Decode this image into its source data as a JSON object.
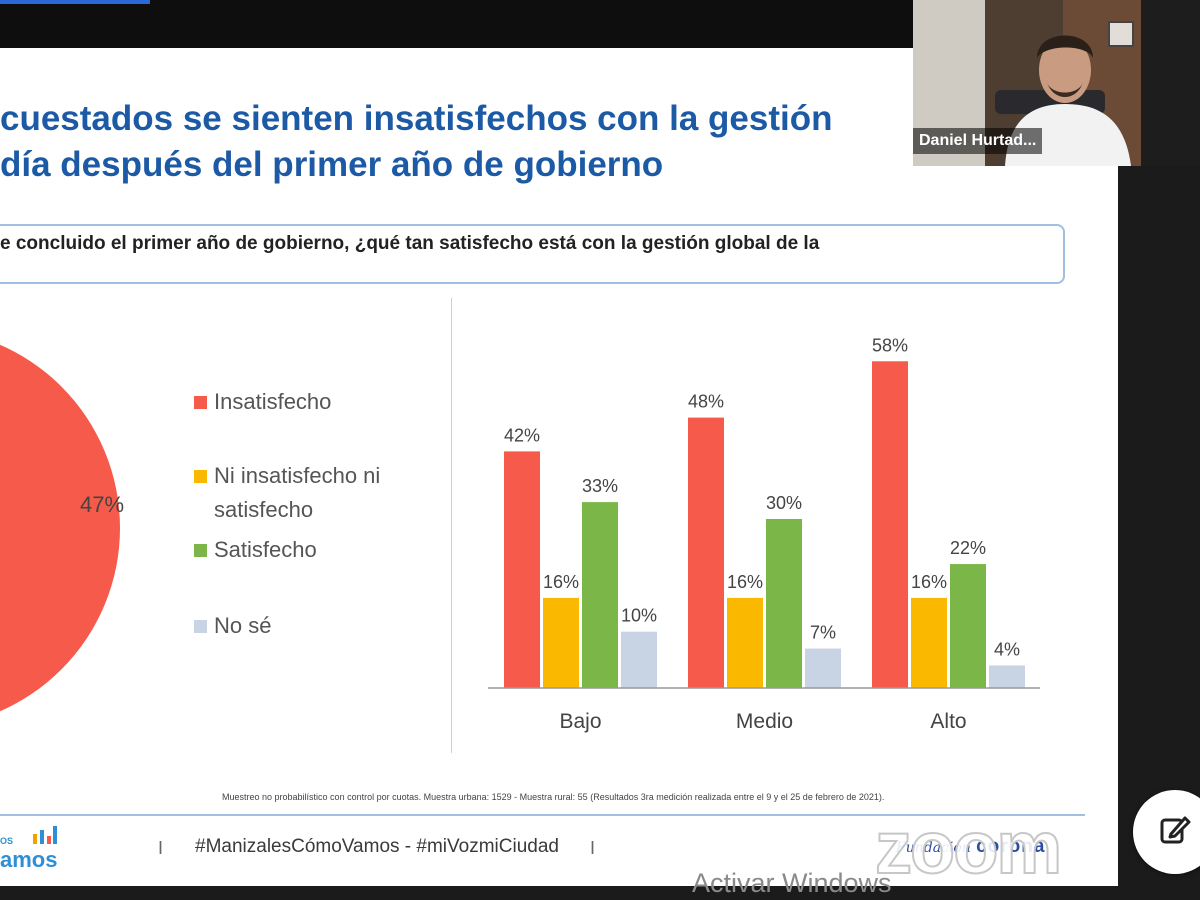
{
  "slide": {
    "title_line1": "cuestados se sienten insatisfechos con la gestión",
    "title_line2": "día después del primer año de gobierno",
    "question": "e concluido el primer año de gobierno, ¿qué tan satisfecho está con la gestión global de la",
    "pie_label": "47%",
    "legend": [
      {
        "label": "Insatisfecho",
        "color": "#f55a4a"
      },
      {
        "label_line1": "Ni insatisfecho ni",
        "label_line2": "satisfecho",
        "color": "#fbb800"
      },
      {
        "label": "Satisfecho",
        "color": "#7ab648"
      },
      {
        "label": "No sé",
        "color": "#c8d3e3"
      }
    ],
    "footnote": "Muestreo no probabilístico con control por cuotas. Muestra urbana: 1529 - Muestra rural: 55 (Resultados 3ra medición realizada entre el 9 y el 25 de febrero de 2021).",
    "logo_small": "OS",
    "logo_big": "amos",
    "separator": "I",
    "hashtags": "#ManizalesCómoVamos - #miVozmiCiudad",
    "sponsor_script": "Fundación",
    "sponsor_bold": "corona"
  },
  "chart_data": {
    "type": "bar",
    "categories": [
      "Bajo",
      "Medio",
      "Alto"
    ],
    "series": [
      {
        "name": "Insatisfecho",
        "values": [
          42,
          48,
          58
        ],
        "labels": [
          "42%",
          "48%",
          "58%"
        ],
        "color": "#f55a4a"
      },
      {
        "name": "Ni insatisfecho ni satisfecho",
        "values": [
          16,
          16,
          16
        ],
        "labels": [
          "16%",
          "16%",
          "16%"
        ],
        "color": "#fbb800"
      },
      {
        "name": "Satisfecho",
        "values": [
          33,
          30,
          22
        ],
        "labels": [
          "33%",
          "30%",
          "22%"
        ],
        "color": "#7ab648"
      },
      {
        "name": "No sé",
        "values": [
          10,
          7,
          4
        ],
        "labels": [
          "10%",
          "7%",
          "4%"
        ],
        "color": "#c8d3e3"
      }
    ],
    "ylim": [
      0,
      60
    ],
    "grid": false,
    "axis_labels": {
      "x": "",
      "y": ""
    }
  },
  "zoom": {
    "participant_name": "Daniel Hurtad...",
    "watermark": "zoom",
    "activate_windows": "Activar Windows"
  },
  "colors": {
    "title": "#1d5aa6",
    "accent_blue": "#2a67d8",
    "zoom_watermark": "#ffffff"
  }
}
